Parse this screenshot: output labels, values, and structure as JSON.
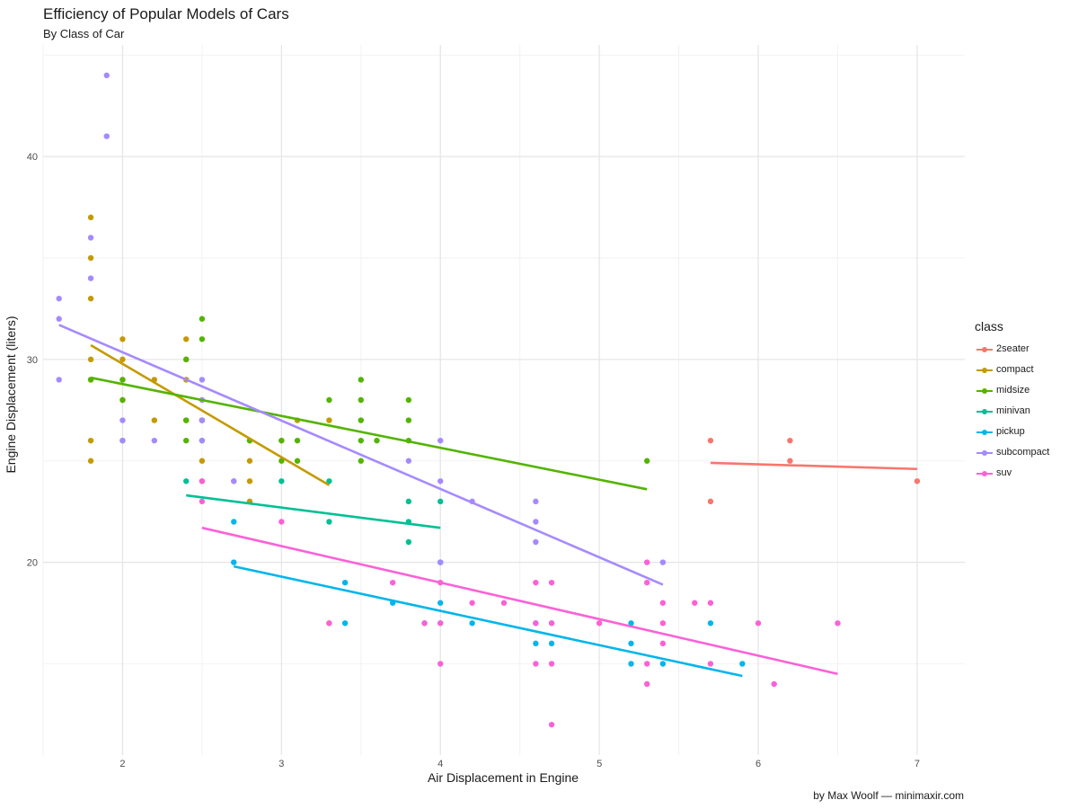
{
  "chart_data": {
    "type": "scatter",
    "title": "Efficiency of Popular Models of Cars",
    "subtitle": "By Class of Car",
    "xlabel": "Air Displacement in Engine",
    "ylabel": "Engine Displacement (liters)",
    "caption": "by Max Woolf — minimaxir.com",
    "xlim": [
      1.5,
      7.3
    ],
    "ylim": [
      10.5,
      45.5
    ],
    "x_ticks": [
      2,
      3,
      4,
      5,
      6,
      7
    ],
    "y_ticks": [
      20,
      30,
      40
    ],
    "grid": true,
    "legend": {
      "title": "class",
      "position": "right"
    },
    "series": [
      {
        "name": "2seater",
        "color": "#F8766D",
        "points": [
          [
            5.7,
            26
          ],
          [
            5.7,
            23
          ],
          [
            6.2,
            26
          ],
          [
            6.2,
            25
          ],
          [
            7.0,
            24
          ]
        ],
        "trend": [
          [
            5.7,
            24.9
          ],
          [
            7.0,
            24.6
          ]
        ]
      },
      {
        "name": "compact",
        "color": "#C49A00",
        "points": [
          [
            1.8,
            37
          ],
          [
            1.8,
            35
          ],
          [
            1.8,
            33
          ],
          [
            1.8,
            30
          ],
          [
            1.8,
            29
          ],
          [
            1.8,
            26
          ],
          [
            1.8,
            25
          ],
          [
            2.0,
            31
          ],
          [
            2.0,
            30
          ],
          [
            2.0,
            29
          ],
          [
            2.0,
            28
          ],
          [
            2.2,
            29
          ],
          [
            2.2,
            27
          ],
          [
            2.4,
            31
          ],
          [
            2.4,
            30
          ],
          [
            2.4,
            29
          ],
          [
            2.4,
            27
          ],
          [
            2.5,
            27
          ],
          [
            2.5,
            25
          ],
          [
            2.8,
            26
          ],
          [
            2.8,
            25
          ],
          [
            2.8,
            24
          ],
          [
            2.8,
            23
          ],
          [
            3.0,
            26
          ],
          [
            3.1,
            27
          ],
          [
            3.3,
            27
          ],
          [
            3.3,
            17
          ],
          [
            2.7,
            24
          ],
          [
            2.5,
            24
          ]
        ],
        "trend": [
          [
            1.8,
            30.7
          ],
          [
            3.3,
            23.8
          ]
        ]
      },
      {
        "name": "midsize",
        "color": "#53B400",
        "points": [
          [
            1.8,
            29
          ],
          [
            2.0,
            29
          ],
          [
            2.0,
            28
          ],
          [
            2.0,
            26
          ],
          [
            2.4,
            30
          ],
          [
            2.4,
            27
          ],
          [
            2.4,
            26
          ],
          [
            2.5,
            32
          ],
          [
            2.5,
            31
          ],
          [
            2.5,
            27
          ],
          [
            2.5,
            26
          ],
          [
            2.8,
            26
          ],
          [
            3.0,
            25
          ],
          [
            3.0,
            26
          ],
          [
            3.1,
            26
          ],
          [
            3.1,
            25
          ],
          [
            3.3,
            28
          ],
          [
            3.5,
            29
          ],
          [
            3.5,
            28
          ],
          [
            3.5,
            27
          ],
          [
            3.5,
            26
          ],
          [
            3.5,
            25
          ],
          [
            3.6,
            26
          ],
          [
            3.8,
            28
          ],
          [
            3.8,
            27
          ],
          [
            3.8,
            26
          ],
          [
            5.3,
            25
          ]
        ],
        "trend": [
          [
            1.8,
            29.1
          ],
          [
            5.3,
            23.6
          ]
        ]
      },
      {
        "name": "minivan",
        "color": "#00C094",
        "points": [
          [
            2.4,
            24
          ],
          [
            3.0,
            24
          ],
          [
            3.3,
            24
          ],
          [
            3.3,
            22
          ],
          [
            3.8,
            23
          ],
          [
            3.8,
            22
          ],
          [
            3.8,
            21
          ],
          [
            4.0,
            23
          ]
        ],
        "trend": [
          [
            2.4,
            23.3
          ],
          [
            4.0,
            21.7
          ]
        ]
      },
      {
        "name": "pickup",
        "color": "#00B6EB",
        "points": [
          [
            2.7,
            22
          ],
          [
            2.7,
            20
          ],
          [
            3.4,
            19
          ],
          [
            3.4,
            17
          ],
          [
            3.7,
            18
          ],
          [
            3.9,
            17
          ],
          [
            4.0,
            20
          ],
          [
            4.0,
            18
          ],
          [
            4.2,
            17
          ],
          [
            4.6,
            17
          ],
          [
            4.6,
            16
          ],
          [
            4.7,
            17
          ],
          [
            4.7,
            16
          ],
          [
            5.2,
            17
          ],
          [
            5.2,
            16
          ],
          [
            5.2,
            15
          ],
          [
            5.4,
            15
          ],
          [
            5.7,
            17
          ],
          [
            5.9,
            15
          ],
          [
            4.0,
            17
          ]
        ],
        "trend": [
          [
            2.7,
            19.8
          ],
          [
            5.9,
            14.4
          ]
        ]
      },
      {
        "name": "subcompact",
        "color": "#A58AFF",
        "points": [
          [
            1.6,
            33
          ],
          [
            1.6,
            32
          ],
          [
            1.6,
            29
          ],
          [
            1.8,
            36
          ],
          [
            1.8,
            34
          ],
          [
            1.9,
            44
          ],
          [
            1.9,
            41
          ],
          [
            2.0,
            27
          ],
          [
            2.0,
            26
          ],
          [
            2.2,
            26
          ],
          [
            2.5,
            29
          ],
          [
            2.5,
            28
          ],
          [
            2.5,
            27
          ],
          [
            2.5,
            26
          ],
          [
            2.7,
            24
          ],
          [
            3.8,
            25
          ],
          [
            4.0,
            26
          ],
          [
            4.0,
            24
          ],
          [
            4.2,
            23
          ],
          [
            4.6,
            23
          ],
          [
            4.6,
            22
          ],
          [
            4.6,
            21
          ],
          [
            5.4,
            20
          ],
          [
            4.0,
            20
          ]
        ],
        "trend": [
          [
            1.6,
            31.7
          ],
          [
            5.4,
            18.9
          ]
        ]
      },
      {
        "name": "suv",
        "color": "#FB61D7",
        "points": [
          [
            2.5,
            24
          ],
          [
            2.5,
            23
          ],
          [
            3.0,
            22
          ],
          [
            3.3,
            17
          ],
          [
            3.7,
            19
          ],
          [
            3.9,
            17
          ],
          [
            4.0,
            19
          ],
          [
            4.0,
            17
          ],
          [
            4.0,
            15
          ],
          [
            4.2,
            18
          ],
          [
            4.4,
            18
          ],
          [
            4.6,
            19
          ],
          [
            4.6,
            17
          ],
          [
            4.6,
            15
          ],
          [
            4.7,
            19
          ],
          [
            4.7,
            17
          ],
          [
            4.7,
            15
          ],
          [
            4.7,
            12
          ],
          [
            5.0,
            17
          ],
          [
            5.3,
            20
          ],
          [
            5.3,
            19
          ],
          [
            5.3,
            15
          ],
          [
            5.3,
            14
          ],
          [
            5.4,
            18
          ],
          [
            5.4,
            17
          ],
          [
            5.4,
            16
          ],
          [
            5.6,
            18
          ],
          [
            5.7,
            18
          ],
          [
            5.7,
            15
          ],
          [
            6.0,
            17
          ],
          [
            6.1,
            14
          ],
          [
            6.5,
            17
          ]
        ],
        "trend": [
          [
            2.5,
            21.7
          ],
          [
            6.5,
            14.5
          ]
        ]
      }
    ]
  }
}
